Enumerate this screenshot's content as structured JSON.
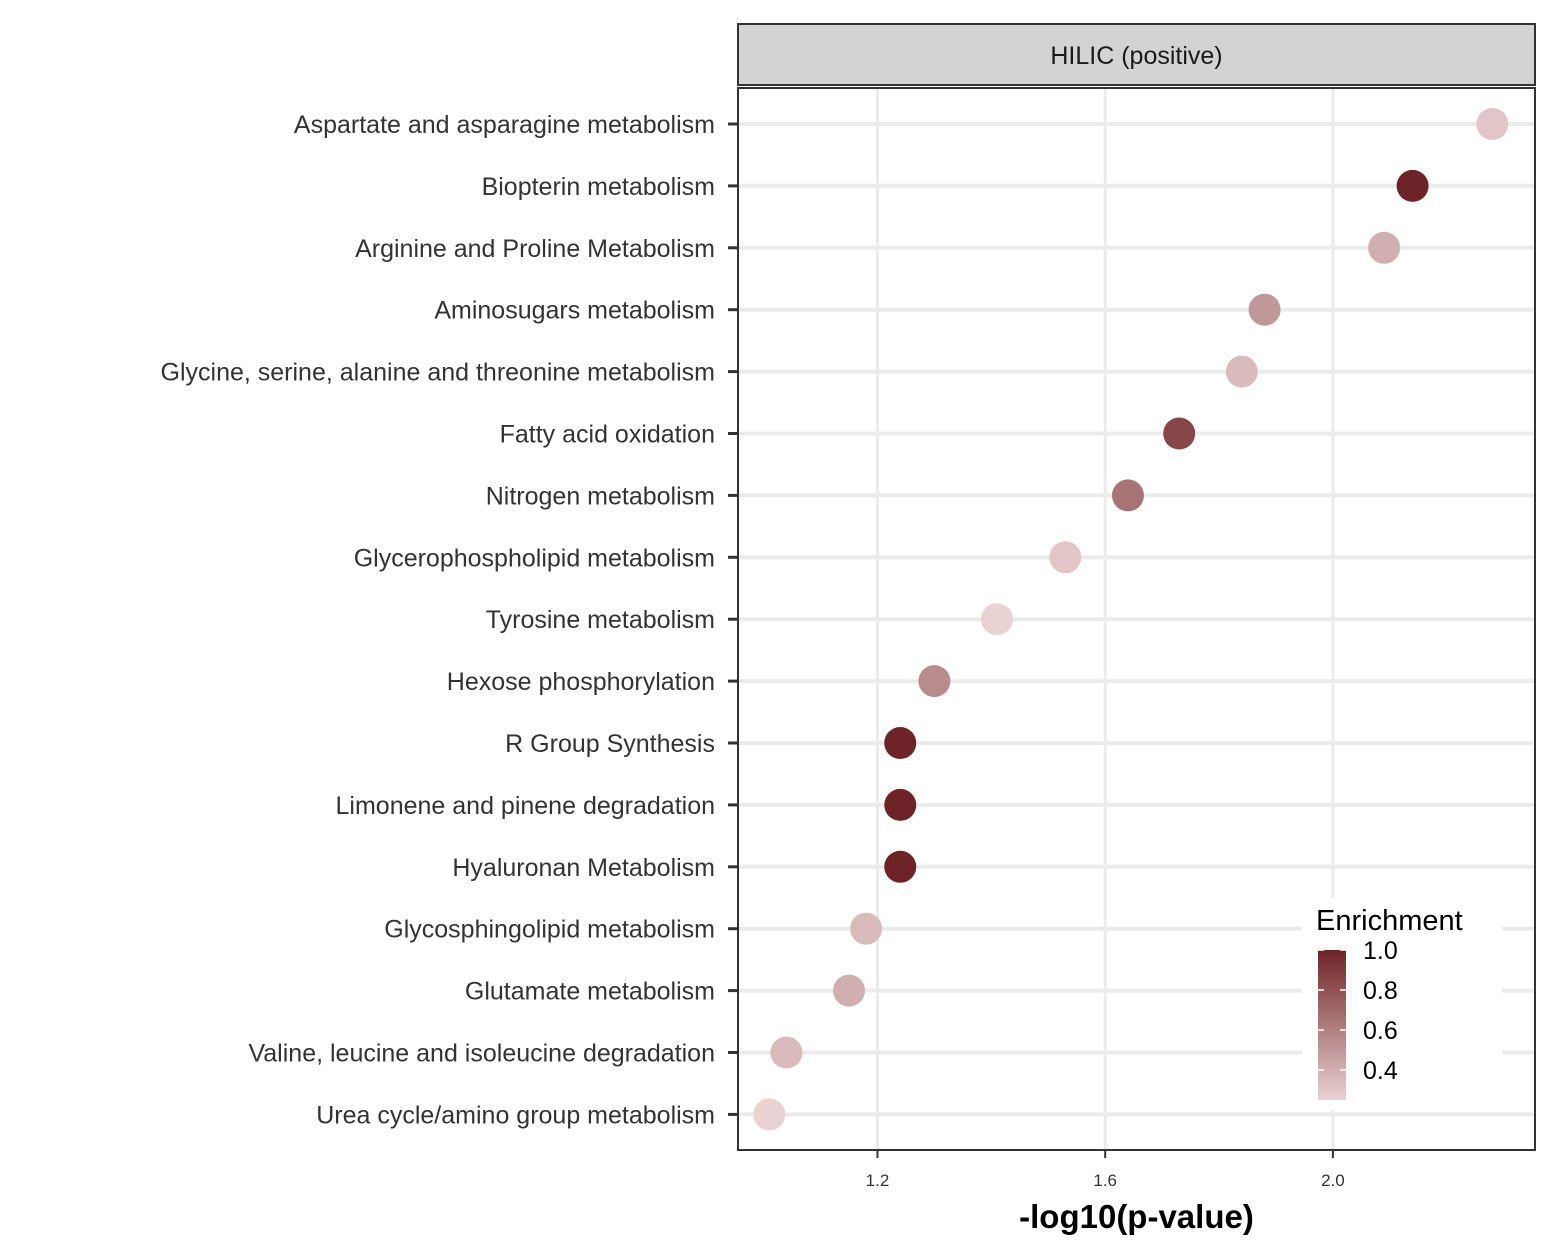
{
  "chart_data": {
    "type": "scatter",
    "facet_label": "HILIC (positive)",
    "xlabel": "-log10(p-value)",
    "ylabel": "",
    "xlim": [
      0.955,
      2.355
    ],
    "xticks": [
      "1.2",
      "1.6",
      "2.0"
    ],
    "xtick_values": [
      1.2,
      1.6,
      2.0
    ],
    "grid": true,
    "categories": [
      "Aspartate and asparagine metabolism",
      "Biopterin metabolism",
      "Arginine and Proline Metabolism",
      "Aminosugars metabolism",
      "Glycine, serine, alanine and threonine metabolism",
      "Fatty acid oxidation",
      "Nitrogen metabolism",
      "Glycerophospholipid metabolism",
      "Tyrosine metabolism",
      "Hexose phosphorylation",
      "R Group Synthesis",
      "Limonene and pinene degradation",
      "Hyaluronan Metabolism",
      "Glycosphingolipid metabolism",
      "Glutamate metabolism",
      "Valine, leucine and isoleucine degradation",
      "Urea cycle/amino group metabolism"
    ],
    "x": [
      2.28,
      2.14,
      2.09,
      1.88,
      1.84,
      1.73,
      1.64,
      1.53,
      1.41,
      1.3,
      1.24,
      1.24,
      1.24,
      1.18,
      1.15,
      1.04,
      1.01
    ],
    "enrichment": [
      0.3,
      1.0,
      0.4,
      0.5,
      0.35,
      0.85,
      0.65,
      0.3,
      0.25,
      0.55,
      1.0,
      1.0,
      1.0,
      0.35,
      0.4,
      0.35,
      0.25
    ],
    "color_scale": {
      "low": "#ead2d2",
      "high": "#6e2326",
      "limits": [
        0.25,
        1.0
      ]
    },
    "legend": {
      "title": "Enrichment",
      "ticks": [
        "1.0",
        "0.8",
        "0.6",
        "0.4"
      ],
      "tick_values": [
        1.0,
        0.8,
        0.6,
        0.4
      ],
      "placement": "bottom-right inside panel"
    }
  }
}
